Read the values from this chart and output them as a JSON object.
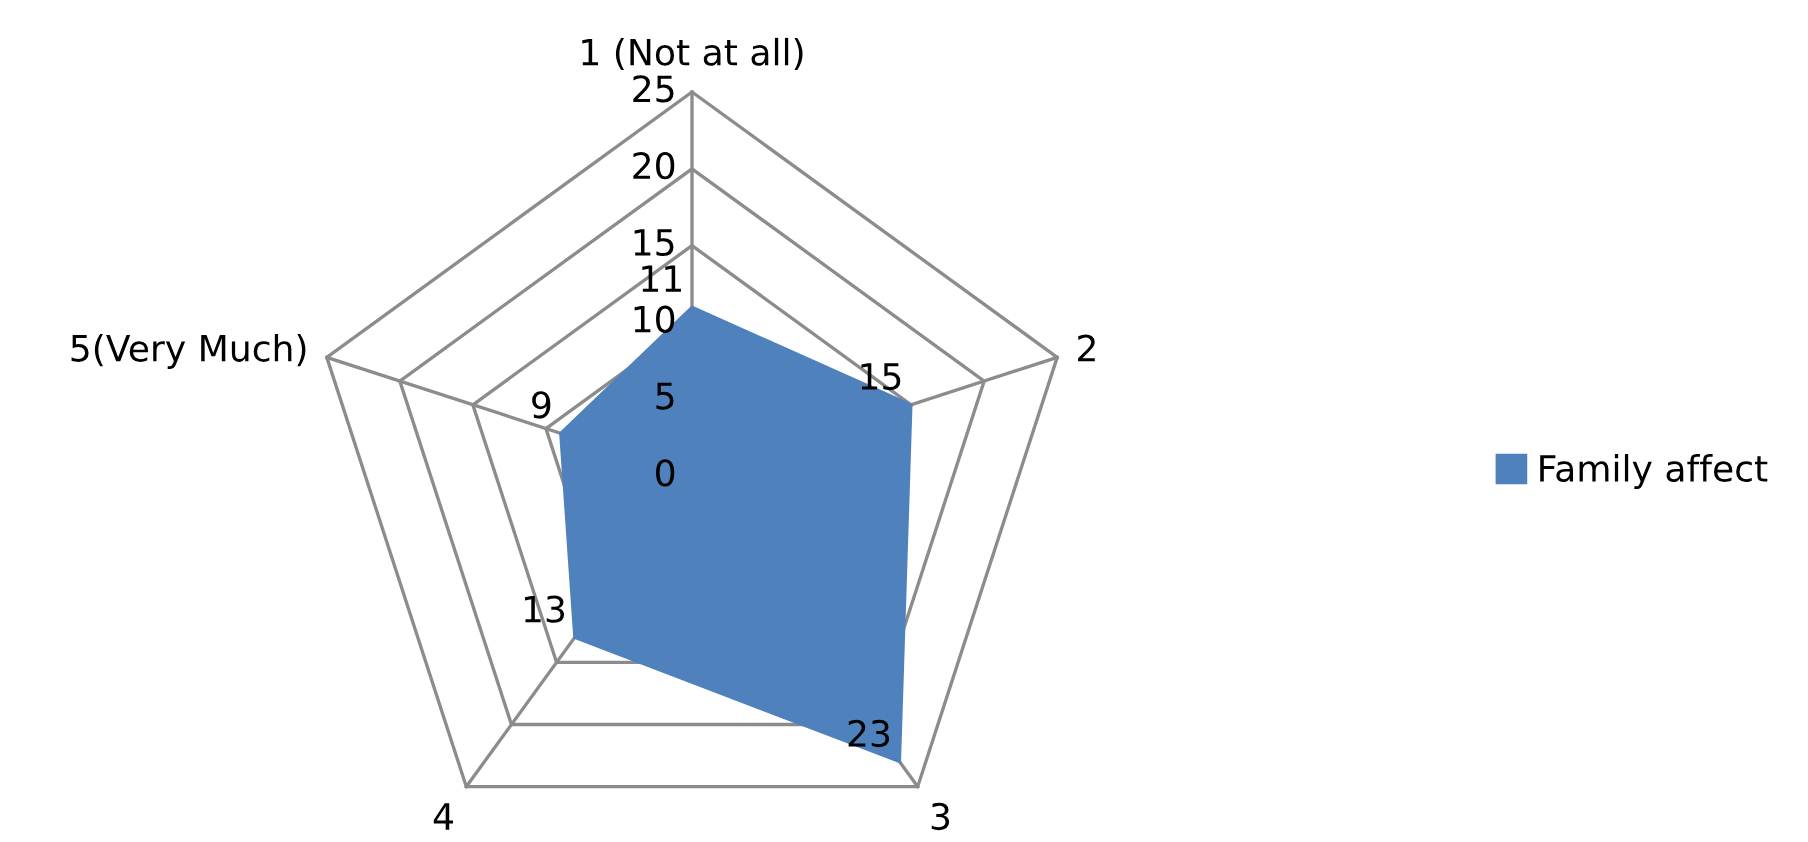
{
  "chart_data": {
    "type": "radar",
    "categories": [
      "1 (Not at all)",
      "2",
      "3",
      "4",
      "5(Very Much)"
    ],
    "series": [
      {
        "name": "Family affect",
        "color": "#4f81bd",
        "values": [
          11,
          15,
          23,
          13,
          9
        ]
      }
    ],
    "ylim": [
      0,
      25
    ],
    "yticks": [
      0,
      5,
      10,
      15,
      20,
      25
    ],
    "data_labels": true,
    "grid": true,
    "legend": "right"
  }
}
